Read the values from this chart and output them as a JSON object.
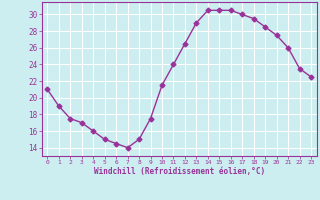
{
  "x": [
    0,
    1,
    2,
    3,
    4,
    5,
    6,
    7,
    8,
    9,
    10,
    11,
    12,
    13,
    14,
    15,
    16,
    17,
    18,
    19,
    20,
    21,
    22,
    23
  ],
  "y": [
    21,
    19,
    17.5,
    17,
    16,
    15,
    14.5,
    14,
    15,
    17.5,
    21.5,
    24,
    26.5,
    29,
    30.5,
    30.5,
    30.5,
    30,
    29.5,
    28.5,
    27.5,
    26,
    23.5,
    22.5
  ],
  "line_color": "#993399",
  "marker": "D",
  "marker_size": 2.5,
  "line_width": 1.0,
  "bg_color": "#cceef0",
  "grid_color": "#ffffff",
  "xlabel": "Windchill (Refroidissement éolien,°C)",
  "xlabel_color": "#993399",
  "tick_color": "#993399",
  "spine_color": "#993399",
  "xlim": [
    -0.5,
    23.5
  ],
  "ylim": [
    13,
    31.5
  ],
  "yticks": [
    14,
    16,
    18,
    20,
    22,
    24,
    26,
    28,
    30
  ],
  "xticks": [
    0,
    1,
    2,
    3,
    4,
    5,
    6,
    7,
    8,
    9,
    10,
    11,
    12,
    13,
    14,
    15,
    16,
    17,
    18,
    19,
    20,
    21,
    22,
    23
  ]
}
